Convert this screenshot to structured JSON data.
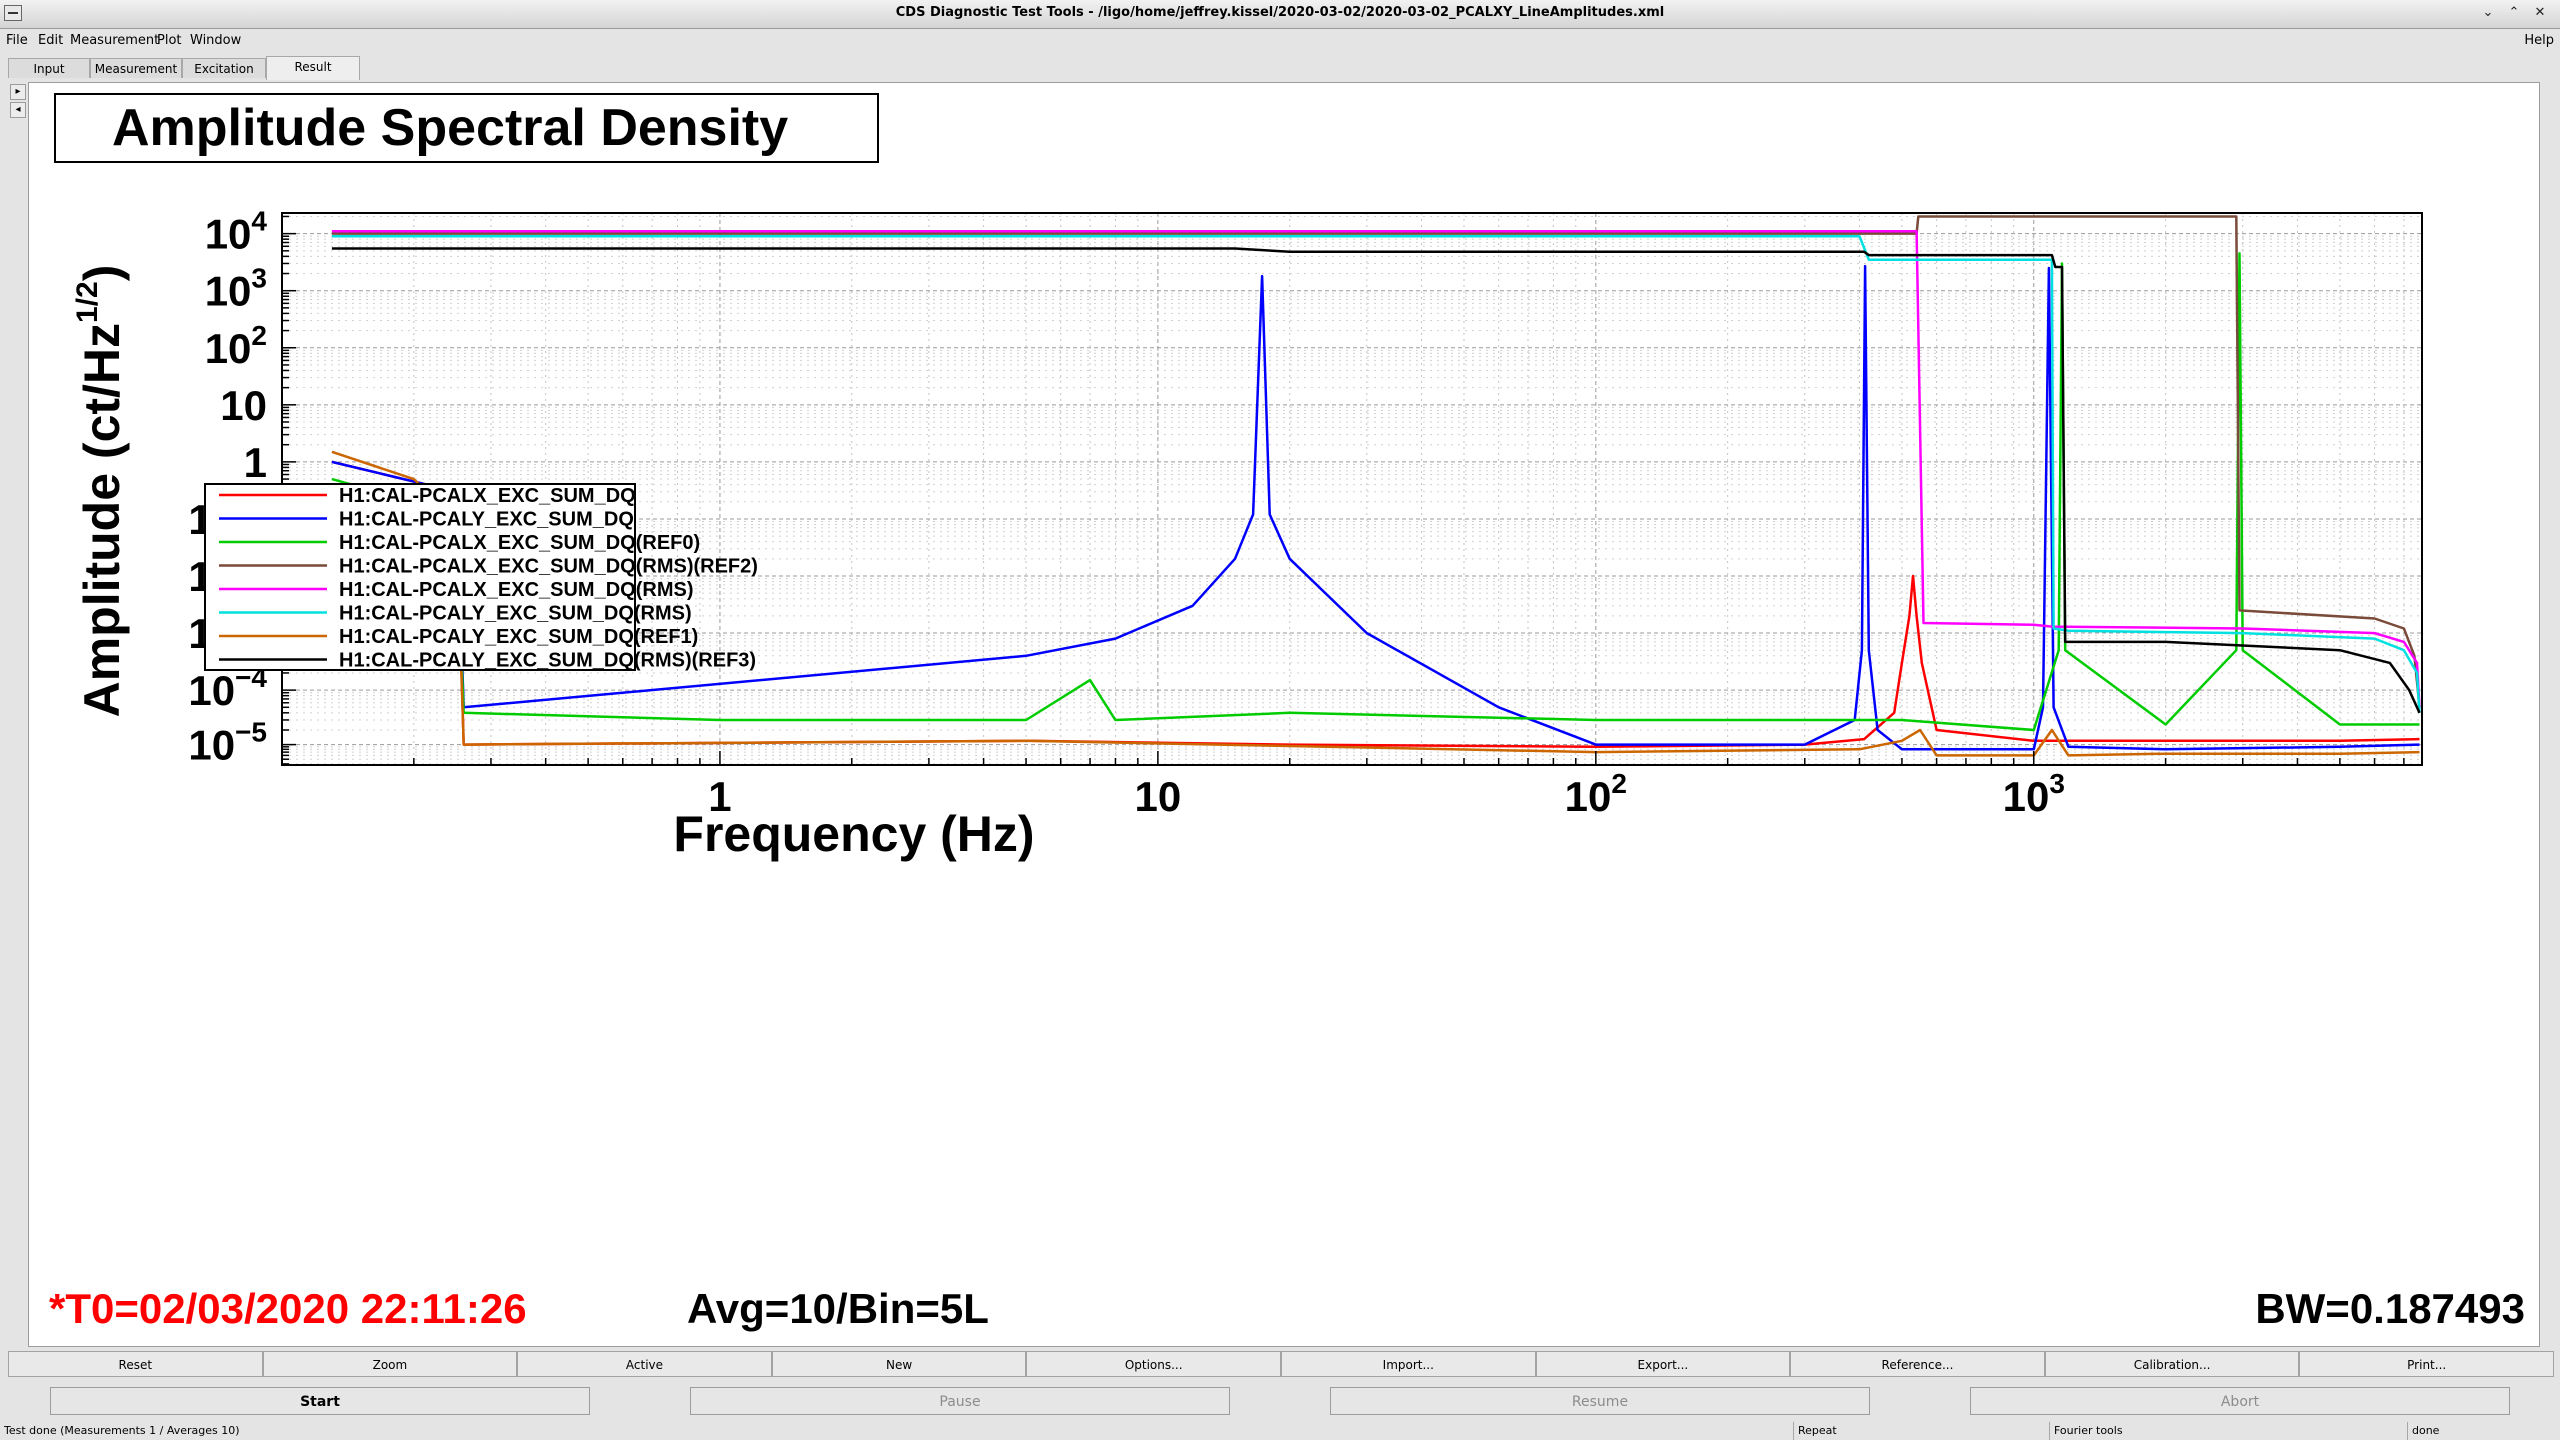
{
  "window": {
    "title": "CDS Diagnostic Test Tools - /ligo/home/jeffrey.kissel/2020-03-02/2020-03-02_PCALXY_LineAmplitudes.xml",
    "controls": [
      "⌄",
      "⌃",
      "✕"
    ]
  },
  "menubar": {
    "items": [
      "File",
      "Edit",
      "Measurement",
      "Plot",
      "Window"
    ],
    "help": "Help"
  },
  "tabs": [
    {
      "label": "Input"
    },
    {
      "label": "Measurement"
    },
    {
      "label": "Excitation"
    },
    {
      "label": "Result",
      "active": true
    }
  ],
  "side_arrows": [
    "▸",
    "◂"
  ],
  "plot": {
    "info": {
      "t0": "*T0=02/03/2020 22:11:26",
      "avg": "Avg=10/Bin=5L",
      "bw": "BW=0.187493"
    },
    "colors": {
      "t0": "#ff0000"
    }
  },
  "chart_data": {
    "type": "line",
    "title": "Amplitude Spectral Density",
    "xlabel": "Frequency (Hz)",
    "ylabel_parts": {
      "main": "Amplitude (ct/Hz",
      "sup": "1/2",
      "close": ")"
    },
    "x_scale": "log",
    "y_scale": "log",
    "xlim": [
      0.1,
      7700
    ],
    "ylim": [
      3.8e-06,
      2e-05,
      23000
    ],
    "grid": true,
    "legend_position": "lower-left",
    "xticks": [
      {
        "value": 1,
        "base": "1",
        "exp": ""
      },
      {
        "value": 10,
        "base": "10",
        "exp": ""
      },
      {
        "value": 100,
        "base": "10",
        "exp": "2"
      },
      {
        "value": 1000,
        "base": "10",
        "exp": "3"
      }
    ],
    "yticks": [
      {
        "value": 10000,
        "base": "10",
        "exp": "4"
      },
      {
        "value": 1000,
        "base": "10",
        "exp": "3"
      },
      {
        "value": 100,
        "base": "10",
        "exp": "2"
      },
      {
        "value": 10,
        "base": "10",
        "exp": ""
      },
      {
        "value": 1,
        "base": "1",
        "exp": ""
      },
      {
        "value": 0.1,
        "base": "10",
        "exp": "−1"
      },
      {
        "value": 0.01,
        "base": "10",
        "exp": "−2"
      },
      {
        "value": 0.001,
        "base": "10",
        "exp": "−3"
      },
      {
        "value": 0.0001,
        "base": "10",
        "exp": "−4"
      },
      {
        "value": 1e-05,
        "base": "10",
        "exp": "−5"
      }
    ],
    "series": [
      {
        "name": "H1:CAL-PCALX_EXC_SUM_DQ",
        "color": "#ff0000",
        "x": [
          0.13,
          0.25,
          0.26,
          5,
          20,
          100,
          300,
          410,
          480,
          500,
          520,
          530,
          540,
          555,
          600,
          1000,
          2000,
          5000,
          7600
        ],
        "y": [
          1.0,
          0.3,
          1e-05,
          1.2e-05,
          1e-05,
          9e-06,
          1e-05,
          1.3e-05,
          4e-05,
          0.0003,
          0.002,
          0.01,
          0.002,
          0.0003,
          2e-05,
          1.2e-05,
          1.2e-05,
          1.2e-05,
          1.3e-05
        ]
      },
      {
        "name": "H1:CAL-PCALY_EXC_SUM_DQ",
        "color": "#0000ff",
        "x": [
          0.13,
          0.25,
          0.26,
          5,
          8,
          12,
          15,
          16.5,
          17.3,
          18,
          20,
          30,
          60,
          100,
          300,
          390,
          405,
          412,
          420,
          440,
          500,
          1000,
          1050,
          1083,
          1110,
          1200,
          2000,
          5000,
          7600
        ],
        "y": [
          1.0,
          0.3,
          5e-05,
          0.0004,
          0.0008,
          0.003,
          0.02,
          0.12,
          1800,
          0.12,
          0.02,
          0.001,
          5e-05,
          1e-05,
          1e-05,
          3e-05,
          0.0005,
          2700,
          0.0005,
          2e-05,
          8e-06,
          8e-06,
          5e-05,
          2500,
          5e-05,
          9e-06,
          8e-06,
          9e-06,
          1e-05
        ]
      },
      {
        "name": "H1:CAL-PCALX_EXC_SUM_DQ(REF0)",
        "color": "#00cc00",
        "x": [
          0.13,
          0.2,
          0.25,
          0.26,
          1,
          5,
          7,
          8,
          20,
          100,
          400,
          500,
          1000,
          1140,
          1160,
          1180,
          2000,
          2900,
          2950,
          3000,
          5000,
          7600
        ],
        "y": [
          0.5,
          0.2,
          0.05,
          4e-05,
          3e-05,
          3e-05,
          0.00015,
          3e-05,
          4e-05,
          3e-05,
          3e-05,
          3e-05,
          2e-05,
          0.0005,
          3000,
          0.0005,
          2.5e-05,
          0.0005,
          4500,
          0.0005,
          2.5e-05,
          2.5e-05
        ]
      },
      {
        "name": "H1:CAL-PCALX_EXC_SUM_DQ(RMS)(REF2)",
        "color": "#7a4a3a",
        "x": [
          0.13,
          500,
          540,
          545,
          2800,
          2900,
          2950,
          6000,
          7000,
          7400,
          7600
        ],
        "y": [
          10000,
          10000,
          10000,
          20000,
          20000,
          20000,
          0.0025,
          0.0018,
          0.0012,
          0.0004,
          5e-05
        ]
      },
      {
        "name": "H1:CAL-PCALX_EXC_SUM_DQ(RMS)",
        "color": "#ff00ff",
        "x": [
          0.13,
          535,
          540,
          560,
          1000,
          1100,
          3000,
          6000,
          7000,
          7500,
          7600
        ],
        "y": [
          11000,
          11000,
          11000,
          0.0015,
          0.0014,
          0.0013,
          0.0012,
          0.001,
          0.0007,
          0.0003,
          5e-05
        ]
      },
      {
        "name": "H1:CAL-PCALY_EXC_SUM_DQ(RMS)",
        "color": "#00e0e0",
        "x": [
          0.13,
          400,
          420,
          1100,
          1110,
          1200,
          3000,
          6000,
          7000,
          7500,
          7600
        ],
        "y": [
          9000,
          9000,
          3500,
          3500,
          0.0012,
          0.0011,
          0.001,
          0.0008,
          0.0005,
          0.0002,
          4e-05
        ]
      },
      {
        "name": "H1:CAL-PCALY_EXC_SUM_DQ(REF1)",
        "color": "#cc6600",
        "x": [
          0.13,
          0.2,
          0.25,
          0.26,
          5,
          100,
          400,
          500,
          550,
          600,
          1000,
          1100,
          1200,
          2000,
          5000,
          7600
        ],
        "y": [
          1.5,
          0.5,
          0.1,
          1e-05,
          1.2e-05,
          7e-06,
          8e-06,
          1.2e-05,
          2e-05,
          6e-06,
          6e-06,
          2e-05,
          6e-06,
          6.5e-06,
          6.5e-06,
          7e-06
        ]
      },
      {
        "name": "H1:CAL-PCALY_EXC_SUM_DQ(RMS)(REF3)",
        "color": "#000000",
        "x": [
          0.13,
          15,
          20,
          410,
          420,
          1100,
          1120,
          1160,
          1180,
          2000,
          5000,
          6500,
          7200,
          7600
        ],
        "y": [
          5500,
          5500,
          4800,
          4800,
          4200,
          4200,
          2600,
          2600,
          0.0007,
          0.0007,
          0.0005,
          0.0003,
          0.0001,
          4e-05
        ]
      }
    ]
  },
  "buttons_row1": [
    "Reset",
    "Zoom",
    "Active",
    "New",
    "Options...",
    "Import...",
    "Export...",
    "Reference...",
    "Calibration...",
    "Print..."
  ],
  "buttons_row2": [
    {
      "label": "Start",
      "enabled": true
    },
    {
      "label": "Pause",
      "enabled": false
    },
    {
      "label": "Resume",
      "enabled": false
    },
    {
      "label": "Abort",
      "enabled": false
    }
  ],
  "status": {
    "message": "Test done (Measurements 1 / Averages 10)",
    "repeat": "Repeat",
    "tool": "Fourier tools",
    "state": "done"
  }
}
